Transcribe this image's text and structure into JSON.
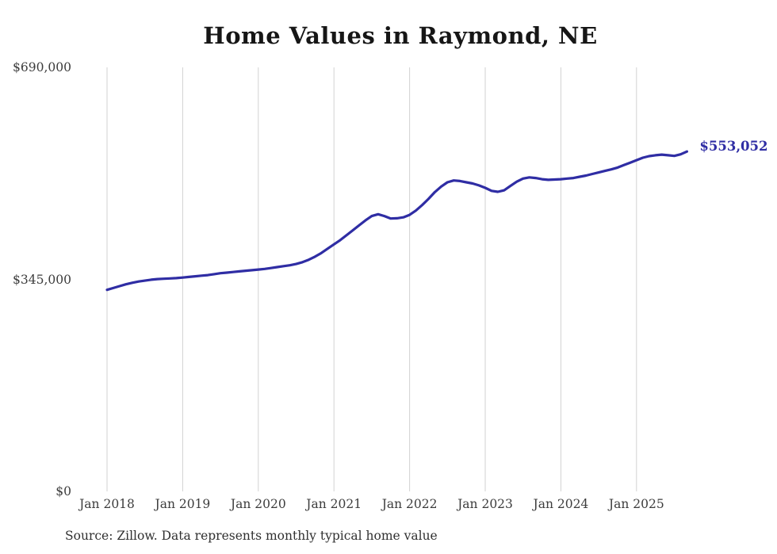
{
  "chart_data": {
    "type": "line",
    "title": "Home Values in Raymond, NE",
    "series_name": "Typical home value",
    "unit": "USD",
    "x_interval": "monthly",
    "dates": [
      "2018-01",
      "2018-02",
      "2018-03",
      "2018-04",
      "2018-05",
      "2018-06",
      "2018-07",
      "2018-08",
      "2018-09",
      "2018-10",
      "2018-11",
      "2018-12",
      "2019-01",
      "2019-02",
      "2019-03",
      "2019-04",
      "2019-05",
      "2019-06",
      "2019-07",
      "2019-08",
      "2019-09",
      "2019-10",
      "2019-11",
      "2019-12",
      "2020-01",
      "2020-02",
      "2020-03",
      "2020-04",
      "2020-05",
      "2020-06",
      "2020-07",
      "2020-08",
      "2020-09",
      "2020-10",
      "2020-11",
      "2020-12",
      "2021-01",
      "2021-02",
      "2021-03",
      "2021-04",
      "2021-05",
      "2021-06",
      "2021-07",
      "2021-08",
      "2021-09",
      "2021-10",
      "2021-11",
      "2021-12",
      "2022-01",
      "2022-02",
      "2022-03",
      "2022-04",
      "2022-05",
      "2022-06",
      "2022-07",
      "2022-08",
      "2022-09",
      "2022-10",
      "2022-11",
      "2022-12",
      "2023-01",
      "2023-02",
      "2023-03",
      "2023-04",
      "2023-05",
      "2023-06",
      "2023-07",
      "2023-08",
      "2023-09",
      "2023-10",
      "2023-11",
      "2023-12",
      "2024-01",
      "2024-02",
      "2024-03",
      "2024-04",
      "2024-05",
      "2024-06",
      "2024-07",
      "2024-08",
      "2024-09",
      "2024-10",
      "2024-11",
      "2024-12",
      "2025-01",
      "2025-02",
      "2025-03",
      "2025-04",
      "2025-05",
      "2025-06",
      "2025-07",
      "2025-08",
      "2025-09"
    ],
    "values": [
      328000,
      331000,
      334000,
      337000,
      339500,
      341500,
      343000,
      344500,
      345500,
      346000,
      346500,
      347000,
      348000,
      349000,
      350000,
      351000,
      352000,
      353500,
      355000,
      356000,
      357000,
      358000,
      359000,
      360000,
      361000,
      362000,
      363500,
      365000,
      366500,
      368000,
      370000,
      373000,
      377000,
      382000,
      388000,
      395000,
      402000,
      409000,
      417000,
      425000,
      433000,
      441000,
      448000,
      451000,
      448000,
      444000,
      444500,
      446000,
      450000,
      457000,
      466000,
      476000,
      487000,
      496000,
      503000,
      506000,
      505000,
      503000,
      501000,
      498000,
      494000,
      489000,
      487500,
      490000,
      497000,
      504000,
      509000,
      511000,
      510000,
      508000,
      507000,
      507500,
      508000,
      509000,
      510000,
      512000,
      514000,
      516500,
      519000,
      521500,
      524000,
      527000,
      531000,
      535000,
      539000,
      543000,
      545500,
      547000,
      548000,
      547000,
      546000,
      548500,
      553052
    ],
    "x_tick_labels": [
      "Jan 2018",
      "Jan 2019",
      "Jan 2020",
      "Jan 2021",
      "Jan 2022",
      "Jan 2023",
      "Jan 2024",
      "Jan 2025"
    ],
    "y_ticks": [
      0,
      345000,
      690000
    ],
    "y_tick_labels": [
      "$0",
      "$345,000",
      "$690,000"
    ],
    "ylim": [
      0,
      690000
    ],
    "grid": "vertical-only",
    "legend": "none",
    "line_color": "#2f2da4",
    "end_label": "$553,052",
    "latest_value": 553052
  },
  "footer": {
    "source": "Source: Zillow. Data represents monthly typical home value"
  }
}
